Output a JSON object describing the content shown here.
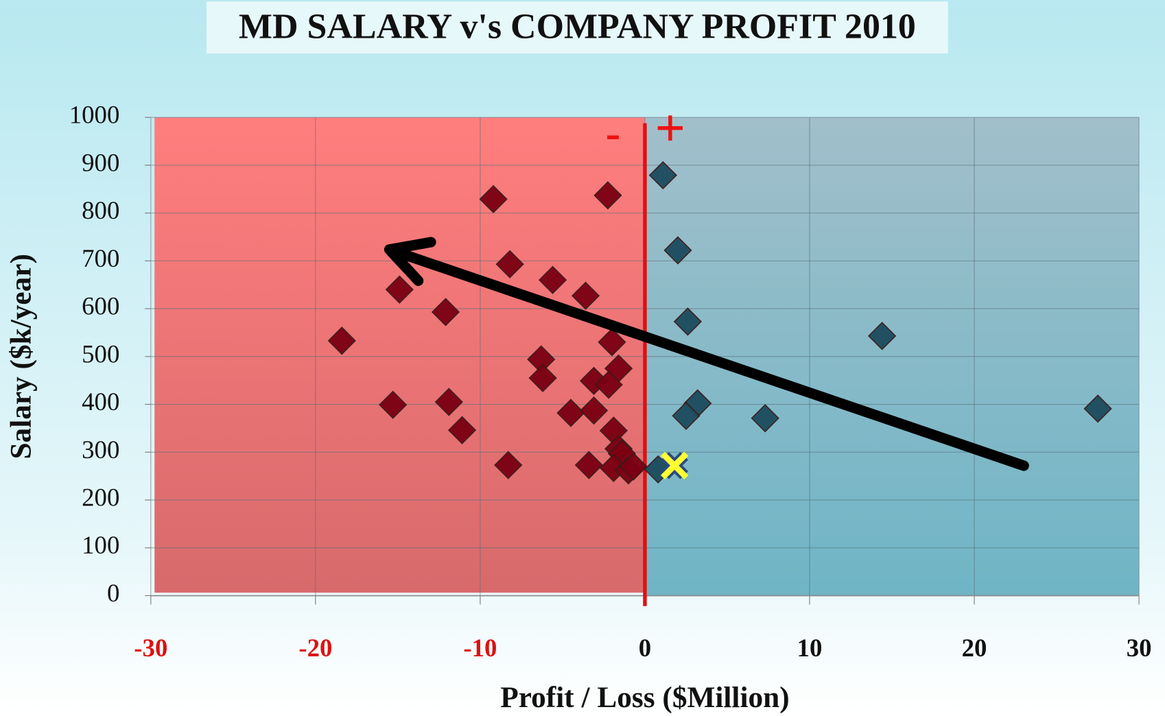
{
  "chart_data": {
    "type": "scatter",
    "title": "MD SALARY v's COMPANY PROFIT 2010",
    "x_label": "Profit / Loss ($Million)",
    "y_label": "Salary ($k/year)",
    "annotations": [
      "-",
      "+"
    ],
    "xlim": [
      -30,
      30
    ],
    "xticks": [
      -30,
      -20,
      -10,
      0,
      10,
      20,
      30
    ],
    "ylim": [
      0,
      1000
    ],
    "yticks": [
      0,
      100,
      200,
      300,
      400,
      500,
      600,
      700,
      800,
      900,
      1000
    ],
    "grid": true,
    "series": [
      {
        "color": "#7a0012",
        "marker": "diamond",
        "x": [
          -9.2,
          -2.25,
          -8.2,
          -5.6,
          -3.6,
          -14.9,
          -12.1,
          -18.4,
          -2.0,
          -6.3,
          -1.6,
          -6.2,
          -3.1,
          -2.2,
          -15.3,
          -11.9,
          -4.5,
          -3.1,
          -11.1,
          -1.9,
          -1.6,
          -1.4,
          -8.3,
          -3.4,
          -1.9,
          -1.0,
          -0.7
        ],
        "values": [
          829,
          837,
          693,
          660,
          627,
          640,
          593,
          533,
          530,
          494,
          475,
          455,
          449,
          441,
          399,
          405,
          382,
          387,
          346,
          345,
          307,
          297,
          273,
          273,
          267,
          262,
          270
        ]
      },
      {
        "color": "#1d4b5e",
        "marker": "diamond",
        "x": [
          1.1,
          2.0,
          2.6,
          14.4,
          3.2,
          2.5,
          7.3,
          27.5,
          0.8
        ],
        "values": [
          879,
          722,
          573,
          543,
          402,
          376,
          371,
          391,
          264
        ]
      },
      {
        "color": "#ffff33",
        "marker": "x",
        "x": [
          1.8
        ],
        "values": [
          272
        ]
      }
    ]
  }
}
